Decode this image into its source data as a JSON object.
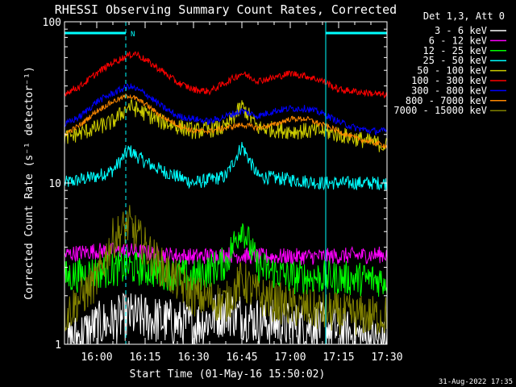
{
  "chart_data": {
    "type": "line",
    "title": "RHESSI Observing Summary Count Rates, Corrected",
    "xlabel": "Start Time (01-May-16 15:50:02)",
    "ylabel": "Corrected Count Rate (s⁻¹ detector⁻¹)",
    "yscale": "log",
    "ylim": [
      1,
      100
    ],
    "xlim_minutes_after_start": [
      0,
      100
    ],
    "x_ticks": [
      {
        "label": "16:00",
        "minutes": 10
      },
      {
        "label": "16:15",
        "minutes": 25
      },
      {
        "label": "16:30",
        "minutes": 40
      },
      {
        "label": "16:45",
        "minutes": 55
      },
      {
        "label": "17:00",
        "minutes": 70
      },
      {
        "label": "17:15",
        "minutes": 85
      },
      {
        "label": "17:30",
        "minutes": 100
      }
    ],
    "y_ticks": [
      {
        "label": "1",
        "value": 1
      },
      {
        "label": "10",
        "value": 10
      },
      {
        "label": "100",
        "value": 100
      }
    ],
    "legend_header": "Det 1,3, Att 0",
    "legend_position": "top-right, outside plot",
    "series": [
      {
        "name": "3 - 6 keV",
        "color": "#ffffff",
        "x": [
          0,
          10,
          20,
          30,
          40,
          50,
          60,
          70,
          80,
          100
        ],
        "y": [
          1,
          1.3,
          1.5,
          1.4,
          1.3,
          1.6,
          1.4,
          1.3,
          1.3,
          1
        ]
      },
      {
        "name": "6 - 12 keV",
        "color": "#ff00ff",
        "x": [
          0,
          10,
          20,
          30,
          40,
          50,
          60,
          70,
          80,
          100
        ],
        "y": [
          3.6,
          3.8,
          3.8,
          3.6,
          3.5,
          3.6,
          3.5,
          3.5,
          3.5,
          3.6
        ]
      },
      {
        "name": "12 - 25 keV",
        "color": "#00ff00",
        "x": [
          0,
          10,
          20,
          30,
          40,
          50,
          55,
          60,
          70,
          80,
          100
        ],
        "y": [
          2.6,
          2.8,
          3,
          2.8,
          2.6,
          3.2,
          5.5,
          3,
          2.6,
          2.6,
          2.5
        ]
      },
      {
        "name": "25 - 50 keV",
        "color": "#00ffff",
        "x": [
          0,
          5,
          10,
          15,
          20,
          25,
          30,
          40,
          50,
          55,
          60,
          70,
          80,
          90,
          100
        ],
        "y": [
          10,
          10.5,
          11,
          12,
          16,
          13.5,
          12,
          10,
          11,
          17,
          11,
          10.5,
          10,
          10,
          10
        ]
      },
      {
        "name": "50 - 100 keV",
        "color": "#cccc00",
        "x": [
          0,
          10,
          15,
          20,
          25,
          30,
          40,
          50,
          55,
          60,
          70,
          80,
          90,
          100
        ],
        "y": [
          19,
          22,
          24,
          30,
          27,
          24,
          21,
          22,
          30,
          22,
          21,
          21,
          19,
          17
        ]
      },
      {
        "name": "100 - 300 keV",
        "color": "#ff0000",
        "x": [
          0,
          5,
          10,
          15,
          20,
          22,
          25,
          30,
          35,
          40,
          45,
          50,
          55,
          60,
          65,
          70,
          75,
          80,
          85,
          90,
          95,
          100
        ],
        "y": [
          36,
          40,
          48,
          56,
          62,
          64,
          58,
          50,
          42,
          38,
          37,
          42,
          48,
          43,
          45,
          48,
          46,
          43,
          38,
          37,
          36,
          35
        ]
      },
      {
        "name": "300 - 800 keV",
        "color": "#0000ff",
        "x": [
          0,
          5,
          10,
          15,
          20,
          25,
          30,
          35,
          40,
          45,
          50,
          55,
          60,
          65,
          70,
          75,
          80,
          85,
          90,
          95,
          100
        ],
        "y": [
          23,
          26,
          32,
          36,
          40,
          36,
          30,
          26,
          25,
          24,
          26,
          28,
          26,
          28,
          29,
          29,
          27,
          24,
          22,
          21,
          21
        ]
      },
      {
        "name": "800 - 7000 keV",
        "color": "#ff8800",
        "x": [
          0,
          5,
          10,
          15,
          20,
          25,
          30,
          35,
          40,
          45,
          50,
          55,
          60,
          65,
          70,
          75,
          80,
          85,
          90,
          95,
          100
        ],
        "y": [
          20,
          23,
          28,
          32,
          35,
          31,
          26,
          23,
          21,
          21,
          22,
          23,
          22,
          23,
          25,
          25,
          23,
          21,
          19,
          18,
          17
        ]
      },
      {
        "name": "7000 - 15000 keV",
        "color": "#808000",
        "x": [
          0,
          10,
          15,
          20,
          25,
          30,
          40,
          50,
          55,
          60,
          70,
          80,
          90,
          100
        ],
        "y": [
          1.5,
          2.5,
          4.5,
          5.5,
          4,
          3,
          2,
          1.8,
          2.5,
          2,
          1.7,
          1.6,
          1.5,
          1.5
        ]
      }
    ],
    "annotations": {
      "attenuator_bars_color": "#00ffff",
      "night_marker_label": "N",
      "intervals_minutes": [
        {
          "start": 0,
          "end": 19
        },
        {
          "start": 81,
          "end": 100
        }
      ]
    },
    "grid": false
  },
  "footer": {
    "timestamp": "31-Aug-2022 17:35"
  }
}
